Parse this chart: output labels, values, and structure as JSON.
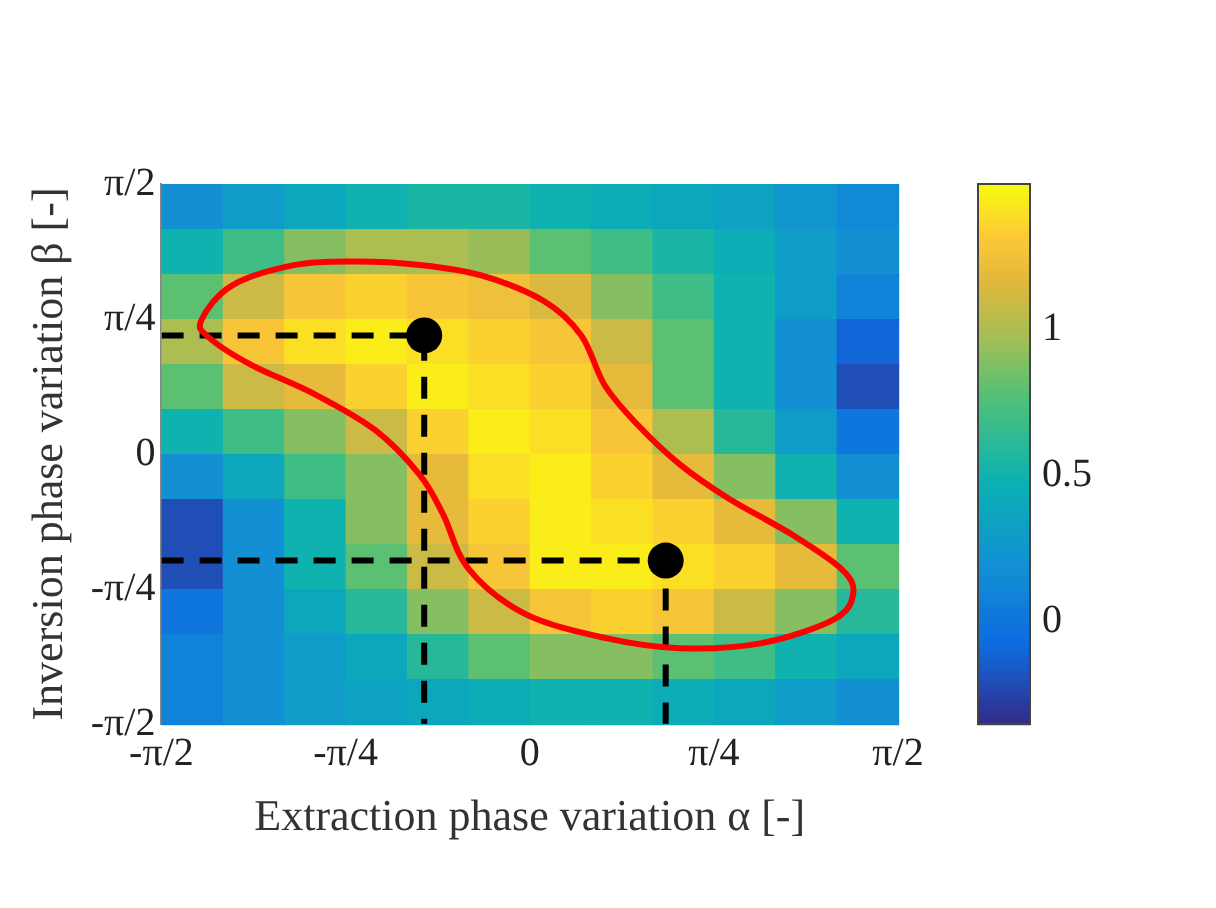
{
  "chart_data": {
    "type": "heatmap",
    "xlabel": "Extraction phase variation α [-]",
    "ylabel": "Inversion phase variation β [-]",
    "x": [
      -1.4399,
      -1.1781,
      -0.9163,
      -0.6545,
      -0.3927,
      -0.1309,
      0.1309,
      0.3927,
      0.6545,
      0.9163,
      1.1781,
      1.4399
    ],
    "cells": [
      [
        0.2,
        0.3,
        0.4,
        0.5,
        0.55,
        0.55,
        0.5,
        0.45,
        0.4,
        0.35,
        0.25,
        0.15
      ],
      [
        0.5,
        0.7,
        0.9,
        1.0,
        1.0,
        0.95,
        0.8,
        0.7,
        0.55,
        0.45,
        0.3,
        0.2
      ],
      [
        0.8,
        1.1,
        1.3,
        1.35,
        1.3,
        1.25,
        1.15,
        0.9,
        0.7,
        0.5,
        0.3,
        0.1
      ],
      [
        1.0,
        1.3,
        1.4,
        1.45,
        1.4,
        1.35,
        1.3,
        1.1,
        0.8,
        0.5,
        0.2,
        -0.1
      ],
      [
        0.8,
        1.1,
        1.2,
        1.35,
        1.45,
        1.4,
        1.35,
        1.2,
        0.8,
        0.5,
        0.2,
        -0.2
      ],
      [
        0.5,
        0.7,
        0.9,
        1.1,
        1.35,
        1.45,
        1.4,
        1.3,
        1.0,
        0.6,
        0.3,
        0.0
      ],
      [
        0.2,
        0.4,
        0.7,
        0.9,
        1.2,
        1.4,
        1.45,
        1.35,
        1.2,
        0.9,
        0.5,
        0.2
      ],
      [
        -0.2,
        0.2,
        0.5,
        0.9,
        1.2,
        1.35,
        1.45,
        1.4,
        1.35,
        1.2,
        0.9,
        0.5
      ],
      [
        -0.2,
        0.2,
        0.5,
        0.8,
        1.1,
        1.3,
        1.45,
        1.45,
        1.4,
        1.35,
        1.2,
        0.8
      ],
      [
        0.0,
        0.2,
        0.4,
        0.6,
        0.9,
        1.1,
        1.3,
        1.35,
        1.3,
        1.1,
        0.9,
        0.6
      ],
      [
        0.1,
        0.2,
        0.3,
        0.4,
        0.6,
        0.8,
        0.9,
        0.9,
        0.8,
        0.7,
        0.5,
        0.4
      ],
      [
        0.1,
        0.2,
        0.3,
        0.35,
        0.4,
        0.45,
        0.5,
        0.5,
        0.45,
        0.4,
        0.3,
        0.2
      ]
    ],
    "clim": [
      -0.35,
      1.5
    ],
    "cticks": [
      0,
      0.5,
      1
    ],
    "xlim": [
      -1.5708,
      1.5708
    ],
    "ylim": [
      -1.5708,
      1.5708
    ],
    "xticks": [
      {
        "value": -1.5708,
        "label": "-π/2"
      },
      {
        "value": -0.7854,
        "label": "-π/4"
      },
      {
        "value": 0,
        "label": "0"
      },
      {
        "value": 0.7854,
        "label": "π/4"
      },
      {
        "value": 1.5708,
        "label": "π/2"
      }
    ],
    "yticks": [
      {
        "value": -1.5708,
        "label": "-π/2"
      },
      {
        "value": -0.7854,
        "label": "-π/4"
      },
      {
        "value": 0,
        "label": "0"
      },
      {
        "value": 0.7854,
        "label": "π/4"
      },
      {
        "value": 1.5708,
        "label": "π/2"
      }
    ],
    "series": [
      {
        "type": "line",
        "color": "#000000",
        "line_style": "dashed",
        "x": [
          -1.57,
          -0.45,
          -0.45
        ],
        "values": [
          0.69,
          0.69,
          -1.57
        ]
      },
      {
        "type": "line",
        "color": "#000000",
        "line_style": "dashed",
        "x": [
          -1.57,
          0.58,
          0.58
        ],
        "values": [
          -0.62,
          -0.62,
          -1.57
        ]
      },
      {
        "type": "scatter",
        "color": "#000000",
        "marker": "circle",
        "x": [
          -0.45,
          0.58
        ],
        "values": [
          0.69,
          -0.62
        ]
      }
    ]
  }
}
